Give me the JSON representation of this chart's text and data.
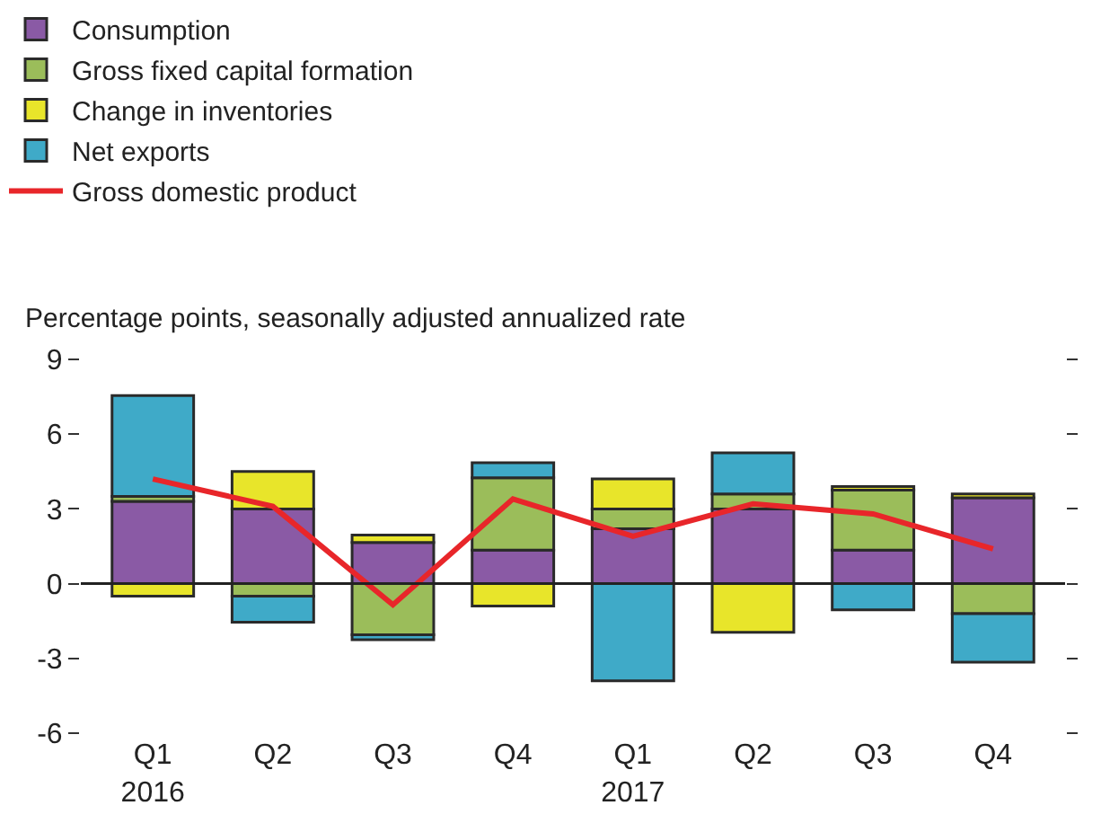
{
  "chart_data": {
    "type": "bar",
    "stacked": true,
    "ylabel": "Percentage points, seasonally adjusted annualized rate",
    "categories": [
      "Q1\n2016",
      "Q2",
      "Q3",
      "Q4",
      "Q1\n2017",
      "Q2",
      "Q3",
      "Q4"
    ],
    "series": [
      {
        "name": "Consumption",
        "color": "#8a5aa5",
        "values": [
          3.3,
          3.0,
          1.65,
          1.35,
          2.2,
          3.0,
          1.35,
          3.45
        ]
      },
      {
        "name": "Gross fixed capital formation",
        "color": "#9bbd5a",
        "values": [
          0.2,
          -0.5,
          -2.05,
          2.9,
          0.8,
          0.6,
          2.4,
          -1.2
        ]
      },
      {
        "name": "Change in inventories",
        "color": "#e8e52a",
        "values": [
          -0.5,
          1.5,
          0.3,
          -0.9,
          1.2,
          -1.95,
          0.15,
          0.15
        ]
      },
      {
        "name": "Net exports",
        "color": "#3faac8",
        "values": [
          4.05,
          -1.05,
          -0.2,
          0.6,
          -3.9,
          1.65,
          -1.05,
          -1.95
        ]
      },
      {
        "name": "Gross domestic product",
        "type": "line",
        "color": "#e8262a",
        "values": [
          4.2,
          3.1,
          -0.85,
          3.4,
          1.9,
          3.2,
          2.8,
          1.4
        ]
      }
    ],
    "ylim": [
      -6,
      9
    ],
    "ref_lines": [
      {
        "axis": "y",
        "value": 0,
        "color": "#222222"
      }
    ],
    "yticks": [
      9,
      6,
      3,
      0,
      -3,
      -6
    ],
    "legend": "top left",
    "marker": "none",
    "line_style": "solid"
  }
}
